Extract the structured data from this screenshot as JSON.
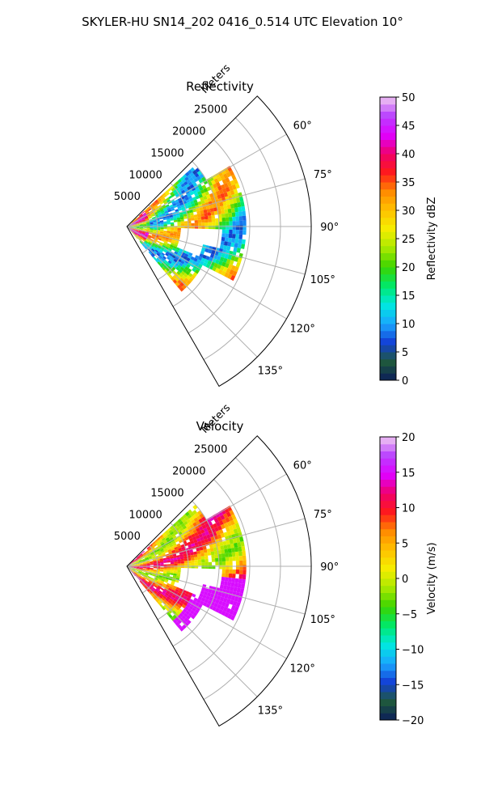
{
  "suptitle": "SKYLER-HU  SN14_202  0416_0.514 UTC Elevation 10°",
  "chart_data": [
    {
      "type": "heatmap",
      "title": "Reflectivity",
      "radial_label": "Meters",
      "radial_ticks": [
        "5000",
        "10000",
        "15000",
        "20000",
        "25000"
      ],
      "radial_tick_values": [
        5000,
        10000,
        15000,
        20000,
        25000
      ],
      "rmax": 30000,
      "azimuth_range_deg": [
        45,
        150
      ],
      "azimuth_ticks": [
        "60°",
        "75°",
        "90°",
        "105°",
        "120°",
        "135°"
      ],
      "azimuth_tick_values": [
        60,
        75,
        90,
        105,
        120,
        135
      ],
      "grid": true,
      "colorbar": {
        "label": "Reflectivity dBZ",
        "vmin": 0,
        "vmax": 50,
        "ticks": [
          "0",
          "5",
          "10",
          "15",
          "20",
          "25",
          "30",
          "35",
          "40",
          "45",
          "50"
        ],
        "tick_values": [
          0,
          5,
          10,
          15,
          20,
          25,
          30,
          35,
          40,
          45,
          50
        ]
      }
    },
    {
      "type": "heatmap",
      "title": "Velocity",
      "radial_label": "Meters",
      "radial_ticks": [
        "5000",
        "10000",
        "15000",
        "20000",
        "25000"
      ],
      "radial_tick_values": [
        5000,
        10000,
        15000,
        20000,
        25000
      ],
      "rmax": 30000,
      "azimuth_range_deg": [
        45,
        150
      ],
      "azimuth_ticks": [
        "60°",
        "75°",
        "90°",
        "105°",
        "120°",
        "135°"
      ],
      "azimuth_tick_values": [
        60,
        75,
        90,
        105,
        120,
        135
      ],
      "grid": true,
      "colorbar": {
        "label": "Velocity (m/s)",
        "vmin": -20,
        "vmax": 20,
        "ticks": [
          "−20",
          "−15",
          "−10",
          "−5",
          "0",
          "5",
          "10",
          "15",
          "20"
        ],
        "tick_values": [
          -20,
          -15,
          -10,
          -5,
          0,
          5,
          10,
          15,
          20
        ]
      }
    }
  ],
  "colormap_stops": [
    "#0b1e5a",
    "#1f5a3c",
    "#123fd6",
    "#1aa6ff",
    "#00e8e0",
    "#00e86a",
    "#3ad400",
    "#a8e800",
    "#f5ee00",
    "#ffc200",
    "#ff8a00",
    "#ff1a1a",
    "#f0006a",
    "#e000ff",
    "#b840ff",
    "#f0c8f0"
  ]
}
